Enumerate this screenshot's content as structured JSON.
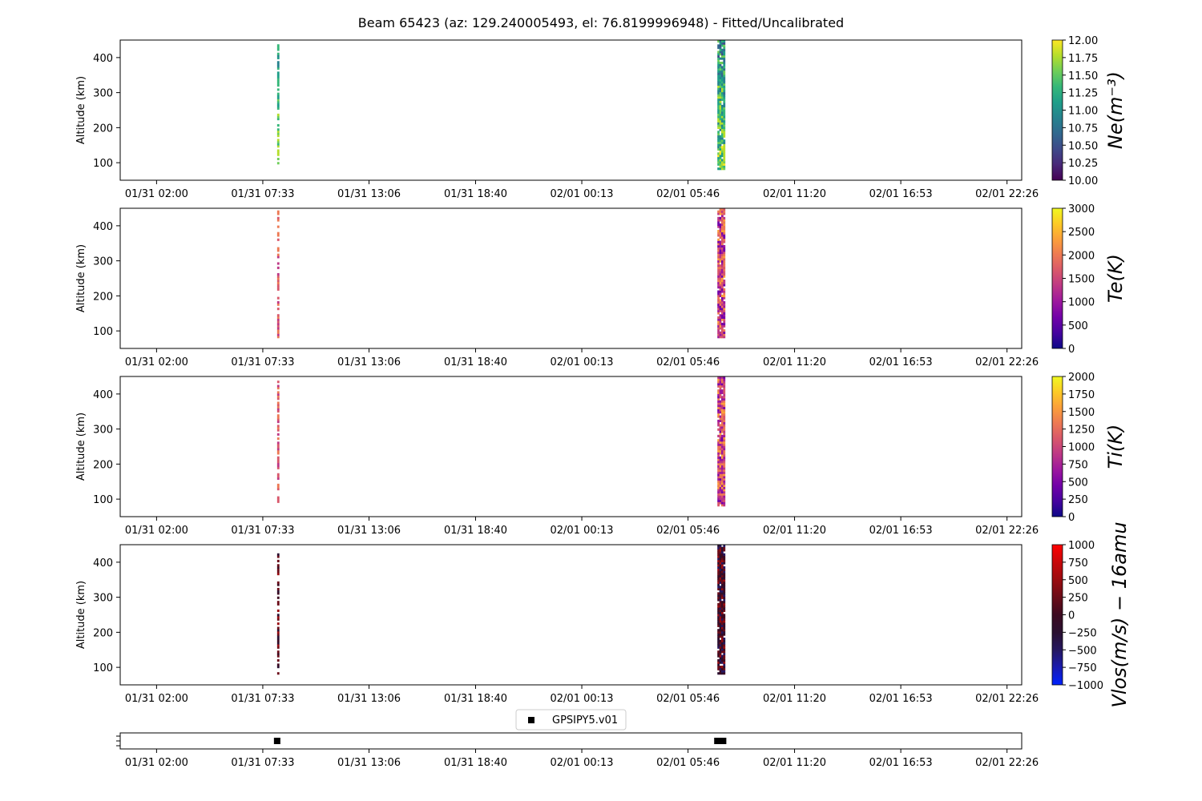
{
  "title": "Beam 65423 (az: 129.240005493, el: 76.8199996948) - Fitted/Uncalibrated",
  "chart_data": {
    "type": "heatmap",
    "x_ticks": [
      "01/31 02:00",
      "01/31 07:33",
      "01/31 13:06",
      "01/31 18:40",
      "02/01 00:13",
      "02/01 05:46",
      "02/01 11:20",
      "02/01 16:53",
      "02/01 22:26"
    ],
    "x_tick_hours": [
      2.0,
      7.55,
      13.1,
      18.667,
      24.217,
      29.767,
      35.333,
      40.883,
      46.433
    ],
    "x_range_hours": [
      0.1,
      47.2
    ],
    "y_ticks": [
      100,
      200,
      300,
      400
    ],
    "y_range": [
      50,
      450
    ],
    "panels": [
      {
        "id": "ne",
        "ylabel": "Altitude (km)",
        "cbar_label": "Ne(m⁻³)",
        "cbar_ticks": [
          "10.00",
          "10.25",
          "10.50",
          "10.75",
          "11.00",
          "11.25",
          "11.50",
          "11.75",
          "12.00"
        ],
        "cbar_range": [
          10.0,
          12.0
        ],
        "colormap": [
          "#440154",
          "#482878",
          "#3e4989",
          "#31688e",
          "#26828e",
          "#1f9e89",
          "#35b779",
          "#6ece58",
          "#b5de2b",
          "#fde725"
        ],
        "bursts": [
          {
            "t_start": 8.3,
            "t_end": 8.4,
            "alt_range": [
              90,
              450
            ]
          },
          {
            "t_start": 31.3,
            "t_end": 31.7,
            "alt_range": [
              80,
              450
            ]
          }
        ]
      },
      {
        "id": "te",
        "ylabel": "Altitude (km)",
        "cbar_label": "Te(K)",
        "cbar_ticks": [
          "0",
          "500",
          "1000",
          "1500",
          "2000",
          "2500",
          "3000"
        ],
        "cbar_range": [
          0,
          3000
        ],
        "colormap": [
          "#0d0887",
          "#46039f",
          "#7201a8",
          "#9c179e",
          "#bd3786",
          "#d8576b",
          "#ed7953",
          "#fb9f3a",
          "#fdca26",
          "#f0f921"
        ],
        "bursts": [
          {
            "t_start": 8.3,
            "t_end": 8.4,
            "alt_range": [
              80,
              450
            ]
          },
          {
            "t_start": 31.3,
            "t_end": 31.7,
            "alt_range": [
              80,
              450
            ]
          }
        ]
      },
      {
        "id": "ti",
        "ylabel": "Altitude (km)",
        "cbar_label": "Ti(K)",
        "cbar_ticks": [
          "0",
          "250",
          "500",
          "750",
          "1000",
          "1250",
          "1500",
          "1750",
          "2000"
        ],
        "cbar_range": [
          0,
          2000
        ],
        "colormap": [
          "#0d0887",
          "#46039f",
          "#7201a8",
          "#9c179e",
          "#bd3786",
          "#d8576b",
          "#ed7953",
          "#fb9f3a",
          "#fdca26",
          "#f0f921"
        ],
        "bursts": [
          {
            "t_start": 8.3,
            "t_end": 8.4,
            "alt_range": [
              90,
              450
            ]
          },
          {
            "t_start": 31.3,
            "t_end": 31.7,
            "alt_range": [
              80,
              450
            ]
          }
        ]
      },
      {
        "id": "vlos",
        "ylabel": "Altitude (km)",
        "cbar_label": "Vlos(m/s) − 16amu",
        "cbar_ticks": [
          "1000",
          "750",
          "500",
          "250",
          "0",
          "−250",
          "−500",
          "−750",
          "−1000"
        ],
        "cbar_range": [
          -1000,
          1000
        ],
        "colormap": [
          "#0022ff",
          "#1a1bb0",
          "#251760",
          "#2a1030",
          "#3c0a20",
          "#6a0c18",
          "#9a0c10",
          "#c8080a",
          "#ff0000"
        ],
        "bursts": [
          {
            "t_start": 8.3,
            "t_end": 8.4,
            "alt_range": [
              80,
              450
            ]
          },
          {
            "t_start": 31.3,
            "t_end": 31.7,
            "alt_range": [
              80,
              450
            ]
          }
        ]
      }
    ],
    "legend": {
      "label": "GPSIPY5.v01",
      "marker": "square",
      "color": "#000000",
      "placement": "upper-center"
    },
    "marker_strip": {
      "points_hours": [
        8.3,
        31.3,
        31.4,
        31.5,
        31.6
      ]
    }
  }
}
